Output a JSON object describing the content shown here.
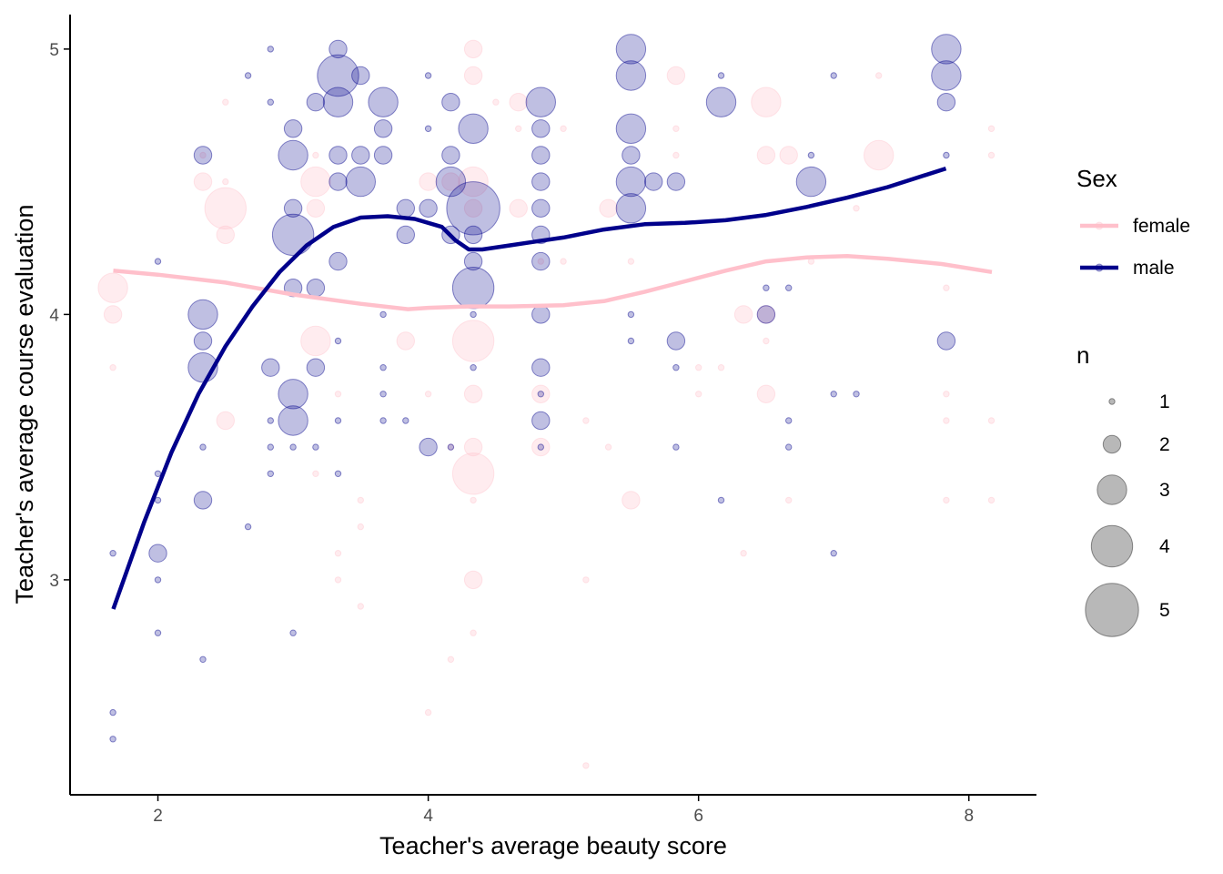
{
  "chart_data": {
    "type": "scatter",
    "title": "",
    "xlabel": "Teacher's average beauty score",
    "ylabel": "Teacher's average course evaluation",
    "xlim": [
      1.35,
      8.5
    ],
    "ylim": [
      2.19,
      5.13
    ],
    "x_ticks": [
      2,
      4,
      6,
      8
    ],
    "y_ticks": [
      3,
      4,
      5
    ],
    "grid": false,
    "legend_position": "right",
    "colors": {
      "female": "#FFC0CB",
      "male": "#00008B"
    },
    "legend": {
      "color_title": "Sex",
      "color_entries": [
        "female",
        "male"
      ],
      "size_title": "n",
      "size_entries": [
        1,
        2,
        3,
        4,
        5
      ]
    },
    "series": [
      {
        "name": "female",
        "points": [
          [
            1.667,
            4.1,
            3
          ],
          [
            1.667,
            4.0,
            2
          ],
          [
            1.667,
            3.8,
            1
          ],
          [
            2.333,
            4.6,
            1
          ],
          [
            2.333,
            4.5,
            2
          ],
          [
            2.5,
            4.4,
            4
          ],
          [
            2.5,
            4.3,
            2
          ],
          [
            2.5,
            3.6,
            2
          ],
          [
            2.5,
            4.8,
            1
          ],
          [
            2.5,
            4.5,
            1
          ],
          [
            3.167,
            4.5,
            3
          ],
          [
            3.167,
            4.4,
            2
          ],
          [
            3.167,
            3.9,
            3
          ],
          [
            3.167,
            3.4,
            1
          ],
          [
            3.167,
            4.6,
            1
          ],
          [
            3.333,
            3.7,
            1
          ],
          [
            3.333,
            3.1,
            1
          ],
          [
            3.333,
            3.0,
            1
          ],
          [
            3.5,
            3.3,
            1
          ],
          [
            3.5,
            3.2,
            1
          ],
          [
            3.5,
            2.9,
            1
          ],
          [
            3.833,
            3.9,
            2
          ],
          [
            4.0,
            4.5,
            2
          ],
          [
            4.0,
            3.7,
            1
          ],
          [
            4.0,
            2.5,
            1
          ],
          [
            4.167,
            4.5,
            2
          ],
          [
            4.167,
            3.5,
            1
          ],
          [
            4.167,
            2.7,
            1
          ],
          [
            4.333,
            5.0,
            2
          ],
          [
            4.333,
            4.9,
            2
          ],
          [
            4.333,
            4.5,
            3
          ],
          [
            4.333,
            4.4,
            2
          ],
          [
            4.333,
            3.9,
            4
          ],
          [
            4.333,
            3.7,
            2
          ],
          [
            4.333,
            3.5,
            2
          ],
          [
            4.333,
            3.4,
            4
          ],
          [
            4.333,
            3.0,
            2
          ],
          [
            4.333,
            2.8,
            1
          ],
          [
            4.333,
            3.3,
            1
          ],
          [
            4.5,
            4.8,
            1
          ],
          [
            4.667,
            4.8,
            2
          ],
          [
            4.667,
            4.4,
            2
          ],
          [
            4.667,
            4.7,
            1
          ],
          [
            4.833,
            3.7,
            2
          ],
          [
            4.833,
            3.5,
            2
          ],
          [
            4.833,
            4.2,
            1
          ],
          [
            5.0,
            4.7,
            1
          ],
          [
            5.0,
            4.2,
            1
          ],
          [
            5.167,
            3.6,
            1
          ],
          [
            5.167,
            3.0,
            1
          ],
          [
            5.167,
            2.3,
            1
          ],
          [
            5.333,
            4.4,
            2
          ],
          [
            5.333,
            3.5,
            1
          ],
          [
            5.5,
            3.3,
            2
          ],
          [
            5.5,
            4.2,
            1
          ],
          [
            5.833,
            4.9,
            2
          ],
          [
            5.833,
            4.7,
            1
          ],
          [
            5.833,
            4.6,
            1
          ],
          [
            6.0,
            3.8,
            1
          ],
          [
            6.0,
            3.7,
            1
          ],
          [
            6.167,
            3.8,
            1
          ],
          [
            6.333,
            4.0,
            2
          ],
          [
            6.333,
            3.1,
            1
          ],
          [
            6.5,
            4.8,
            3
          ],
          [
            6.5,
            4.6,
            2
          ],
          [
            6.5,
            4.0,
            2
          ],
          [
            6.5,
            3.7,
            2
          ],
          [
            6.5,
            3.9,
            1
          ],
          [
            6.667,
            4.6,
            2
          ],
          [
            6.667,
            3.3,
            1
          ],
          [
            6.833,
            4.2,
            1
          ],
          [
            7.167,
            4.4,
            1
          ],
          [
            7.333,
            4.6,
            3
          ],
          [
            7.333,
            4.9,
            1
          ],
          [
            7.833,
            4.1,
            1
          ],
          [
            7.833,
            3.7,
            1
          ],
          [
            7.833,
            3.6,
            1
          ],
          [
            7.833,
            3.3,
            1
          ],
          [
            8.167,
            4.7,
            1
          ],
          [
            8.167,
            4.6,
            1
          ],
          [
            8.167,
            3.6,
            1
          ],
          [
            8.167,
            3.3,
            1
          ]
        ]
      },
      {
        "name": "male",
        "points": [
          [
            1.667,
            3.1,
            1
          ],
          [
            1.667,
            2.5,
            1
          ],
          [
            1.667,
            2.4,
            1
          ],
          [
            2.0,
            4.2,
            1
          ],
          [
            2.0,
            3.4,
            1
          ],
          [
            2.0,
            3.3,
            1
          ],
          [
            2.0,
            3.1,
            2
          ],
          [
            2.0,
            3.0,
            1
          ],
          [
            2.0,
            2.8,
            1
          ],
          [
            2.333,
            4.6,
            2
          ],
          [
            2.333,
            4.0,
            3
          ],
          [
            2.333,
            3.9,
            2
          ],
          [
            2.333,
            3.8,
            3
          ],
          [
            2.333,
            3.5,
            1
          ],
          [
            2.333,
            3.3,
            2
          ],
          [
            2.333,
            2.7,
            1
          ],
          [
            2.667,
            4.9,
            1
          ],
          [
            2.667,
            3.2,
            1
          ],
          [
            2.833,
            5.0,
            1
          ],
          [
            2.833,
            4.8,
            1
          ],
          [
            2.833,
            3.8,
            2
          ],
          [
            2.833,
            3.6,
            1
          ],
          [
            2.833,
            3.5,
            1
          ],
          [
            2.833,
            3.4,
            1
          ],
          [
            3.0,
            4.7,
            2
          ],
          [
            3.0,
            4.6,
            3
          ],
          [
            3.0,
            4.4,
            2
          ],
          [
            3.0,
            4.3,
            4
          ],
          [
            3.0,
            4.1,
            2
          ],
          [
            3.0,
            3.7,
            3
          ],
          [
            3.0,
            3.6,
            3
          ],
          [
            3.0,
            3.5,
            1
          ],
          [
            3.0,
            2.8,
            1
          ],
          [
            3.167,
            4.8,
            2
          ],
          [
            3.167,
            4.1,
            2
          ],
          [
            3.167,
            3.8,
            2
          ],
          [
            3.167,
            3.5,
            1
          ],
          [
            3.333,
            5.0,
            2
          ],
          [
            3.333,
            4.9,
            4
          ],
          [
            3.333,
            4.8,
            3
          ],
          [
            3.333,
            4.6,
            2
          ],
          [
            3.333,
            4.5,
            2
          ],
          [
            3.333,
            4.2,
            2
          ],
          [
            3.333,
            3.9,
            1
          ],
          [
            3.333,
            3.6,
            1
          ],
          [
            3.333,
            3.4,
            1
          ],
          [
            3.5,
            4.9,
            2
          ],
          [
            3.5,
            4.6,
            2
          ],
          [
            3.5,
            4.5,
            3
          ],
          [
            3.667,
            4.8,
            3
          ],
          [
            3.667,
            4.7,
            2
          ],
          [
            3.667,
            4.6,
            2
          ],
          [
            3.667,
            4.0,
            1
          ],
          [
            3.667,
            3.8,
            1
          ],
          [
            3.667,
            3.7,
            1
          ],
          [
            3.667,
            3.6,
            1
          ],
          [
            3.833,
            4.4,
            2
          ],
          [
            3.833,
            4.3,
            2
          ],
          [
            3.833,
            3.6,
            1
          ],
          [
            4.0,
            4.7,
            1
          ],
          [
            4.0,
            4.4,
            2
          ],
          [
            4.0,
            3.5,
            2
          ],
          [
            4.0,
            4.9,
            1
          ],
          [
            4.167,
            4.8,
            2
          ],
          [
            4.167,
            4.6,
            2
          ],
          [
            4.167,
            4.5,
            3
          ],
          [
            4.167,
            4.3,
            2
          ],
          [
            4.167,
            3.5,
            1
          ],
          [
            4.333,
            4.7,
            3
          ],
          [
            4.333,
            4.4,
            5
          ],
          [
            4.333,
            4.3,
            2
          ],
          [
            4.333,
            4.2,
            2
          ],
          [
            4.333,
            4.1,
            4
          ],
          [
            4.333,
            4.0,
            1
          ],
          [
            4.333,
            3.8,
            1
          ],
          [
            4.833,
            4.8,
            3
          ],
          [
            4.833,
            4.7,
            2
          ],
          [
            4.833,
            4.6,
            2
          ],
          [
            4.833,
            4.5,
            2
          ],
          [
            4.833,
            4.4,
            2
          ],
          [
            4.833,
            4.3,
            2
          ],
          [
            4.833,
            4.2,
            2
          ],
          [
            4.833,
            4.0,
            2
          ],
          [
            4.833,
            3.8,
            2
          ],
          [
            4.833,
            3.7,
            1
          ],
          [
            4.833,
            3.6,
            2
          ],
          [
            4.833,
            3.5,
            1
          ],
          [
            5.5,
            5.0,
            3
          ],
          [
            5.5,
            4.9,
            3
          ],
          [
            5.5,
            4.7,
            3
          ],
          [
            5.5,
            4.6,
            2
          ],
          [
            5.5,
            4.5,
            3
          ],
          [
            5.5,
            4.4,
            3
          ],
          [
            5.5,
            4.0,
            1
          ],
          [
            5.5,
            3.9,
            1
          ],
          [
            5.667,
            4.5,
            2
          ],
          [
            5.833,
            4.5,
            2
          ],
          [
            5.833,
            3.9,
            2
          ],
          [
            5.833,
            3.8,
            1
          ],
          [
            5.833,
            3.5,
            1
          ],
          [
            6.167,
            4.8,
            3
          ],
          [
            6.167,
            4.9,
            1
          ],
          [
            6.167,
            3.3,
            1
          ],
          [
            6.5,
            4.1,
            1
          ],
          [
            6.5,
            4.0,
            2
          ],
          [
            6.667,
            4.1,
            1
          ],
          [
            6.667,
            3.6,
            1
          ],
          [
            6.667,
            3.5,
            1
          ],
          [
            6.833,
            4.6,
            1
          ],
          [
            6.833,
            4.5,
            3
          ],
          [
            7.0,
            4.9,
            1
          ],
          [
            7.0,
            3.7,
            1
          ],
          [
            7.0,
            3.1,
            1
          ],
          [
            7.167,
            3.7,
            1
          ],
          [
            7.833,
            5.0,
            3
          ],
          [
            7.833,
            4.9,
            3
          ],
          [
            7.833,
            4.8,
            2
          ],
          [
            7.833,
            3.9,
            2
          ],
          [
            7.833,
            4.6,
            1
          ]
        ]
      }
    ],
    "smooth_lines": [
      {
        "name": "female",
        "x": [
          1.67,
          2.0,
          2.5,
          3.0,
          3.5,
          3.85,
          4.0,
          4.3,
          4.6,
          5.0,
          5.3,
          5.6,
          5.9,
          6.2,
          6.5,
          6.8,
          7.1,
          7.4,
          7.8,
          8.17
        ],
        "y": [
          4.165,
          4.15,
          4.12,
          4.075,
          4.04,
          4.02,
          4.025,
          4.03,
          4.03,
          4.035,
          4.05,
          4.085,
          4.125,
          4.165,
          4.2,
          4.215,
          4.22,
          4.21,
          4.19,
          4.16
        ]
      },
      {
        "name": "male",
        "x": [
          1.67,
          1.9,
          2.1,
          2.3,
          2.5,
          2.7,
          2.9,
          3.1,
          3.3,
          3.5,
          3.7,
          3.9,
          4.1,
          4.2,
          4.3,
          4.4,
          4.6,
          4.8,
          5.0,
          5.3,
          5.6,
          5.9,
          6.2,
          6.5,
          6.8,
          7.1,
          7.4,
          7.83
        ],
        "y": [
          2.89,
          3.22,
          3.48,
          3.7,
          3.88,
          4.03,
          4.16,
          4.26,
          4.33,
          4.365,
          4.37,
          4.36,
          4.33,
          4.28,
          4.245,
          4.245,
          4.26,
          4.275,
          4.29,
          4.32,
          4.34,
          4.345,
          4.355,
          4.375,
          4.405,
          4.44,
          4.48,
          4.55
        ]
      }
    ]
  }
}
